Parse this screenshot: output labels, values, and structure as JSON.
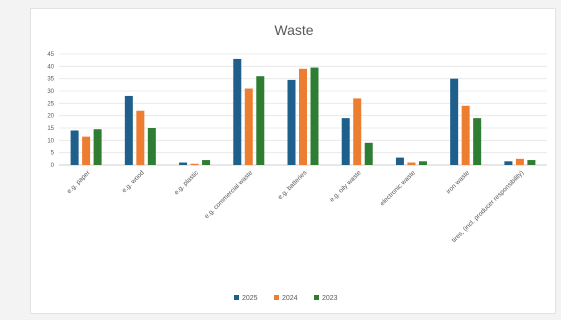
{
  "chart_data": {
    "type": "bar",
    "title": "Waste",
    "categories": [
      "e.g. paper",
      "e.g. wood",
      "e.g. plastic",
      "e.g. commercial waste",
      "e.g. batteries",
      "e.g. oily waste",
      "electronic waste",
      "iron waste",
      "tires, (incl. producer responsibility)"
    ],
    "series": [
      {
        "name": "2025",
        "color": "#1f5f8b",
        "values": [
          14,
          28,
          1,
          43,
          34.5,
          19,
          3,
          35,
          1.5
        ]
      },
      {
        "name": "2024",
        "color": "#ed7d31",
        "values": [
          11.5,
          22,
          0.5,
          31,
          39,
          27,
          1,
          24,
          2.5
        ]
      },
      {
        "name": "2023",
        "color": "#2e7d32",
        "values": [
          14.5,
          15,
          2,
          36,
          39.5,
          9,
          1.5,
          19,
          2
        ]
      }
    ],
    "ylim": [
      0,
      45
    ],
    "yticks": [
      0,
      5,
      10,
      15,
      20,
      25,
      30,
      35,
      40,
      45
    ],
    "grid": true,
    "legend": "bottom"
  }
}
